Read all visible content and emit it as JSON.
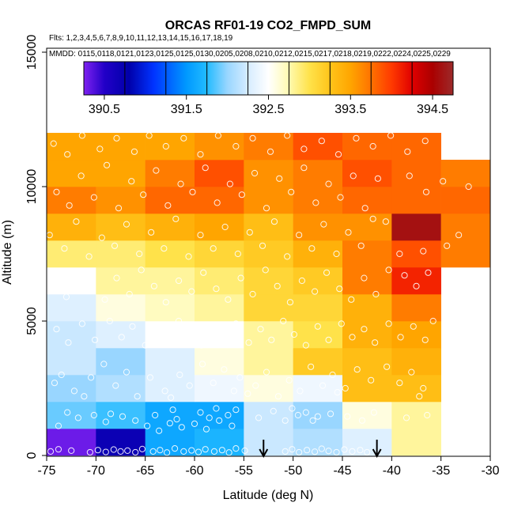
{
  "chart_data": {
    "type": "heatmap",
    "title": "ORCAS RF01-19 CO2_FMPD_SUM",
    "subtitle_flights": "Flts: 1,2,3,4,5,6,7,8,9,10,11,12,13,14,15,16,17,18,19",
    "legend_header": "MMDD: 0115,0118,0121,0123,0125,0125,0130,0205,0208,0210,0212,0215,0217,0218,0219,0222,0224,0225,0229",
    "xlabel": "Latitude (deg N)",
    "ylabel": "Altitude (m)",
    "xlim": [
      -75,
      -30
    ],
    "ylim": [
      0,
      15000
    ],
    "x_ticks": [
      -75,
      -70,
      -65,
      -60,
      -55,
      -50,
      -45,
      -40,
      -35,
      -30
    ],
    "x_tick_labels": [
      "-75",
      "-70",
      "-65",
      "-60",
      "-55",
      "-50",
      "-45",
      "-40",
      "-35",
      "-30"
    ],
    "y_ticks": [
      0,
      5000,
      10000,
      15000
    ],
    "y_tick_labels": [
      "0",
      "5000",
      "10000",
      "15000"
    ],
    "colorbar": {
      "range": [
        390.25,
        394.75
      ],
      "ticks": [
        390.5,
        391.5,
        392.5,
        393.5,
        394.5
      ],
      "tick_labels": [
        "390.5",
        "391.5",
        "392.5",
        "393.5",
        "394.5"
      ],
      "stops": [
        {
          "v": 390.25,
          "c": "#7f22f0"
        },
        {
          "v": 390.5,
          "c": "#2200c8"
        },
        {
          "v": 390.8,
          "c": "#0000aa"
        },
        {
          "v": 391.1,
          "c": "#0033ff"
        },
        {
          "v": 391.5,
          "c": "#0099ff"
        },
        {
          "v": 391.75,
          "c": "#22bbff"
        },
        {
          "v": 392.0,
          "c": "#99d6ff"
        },
        {
          "v": 392.25,
          "c": "#d6ecff"
        },
        {
          "v": 392.5,
          "c": "#ffffff"
        },
        {
          "v": 392.75,
          "c": "#fffab0"
        },
        {
          "v": 393.0,
          "c": "#ffe24a"
        },
        {
          "v": 393.25,
          "c": "#ffc41a"
        },
        {
          "v": 393.5,
          "c": "#ffa500"
        },
        {
          "v": 393.75,
          "c": "#ff7200"
        },
        {
          "v": 394.0,
          "c": "#ff3a00"
        },
        {
          "v": 394.25,
          "c": "#e00000"
        },
        {
          "v": 394.5,
          "c": "#aa0000"
        },
        {
          "v": 394.75,
          "c": "#9c2a2a"
        }
      ]
    },
    "grid": {
      "x_edges": [
        -75,
        -70,
        -65,
        -60,
        -55,
        -50,
        -45,
        -40,
        -35,
        -30
      ],
      "y_edges": [
        0,
        1000,
        2000,
        3000,
        4000,
        5000,
        6000,
        7000,
        8000,
        9000,
        10000,
        11000,
        12000
      ],
      "values": [
        [
          390.3,
          390.7,
          391.6,
          391.7,
          392.2,
          392.1,
          392.3,
          392.8,
          null
        ],
        [
          391.9,
          391.8,
          391.6,
          391.6,
          392.2,
          392.0,
          392.6,
          392.8,
          null
        ],
        [
          392.0,
          392.1,
          392.3,
          392.4,
          392.6,
          392.4,
          393.3,
          393.3,
          null
        ],
        [
          392.2,
          392.0,
          392.3,
          392.6,
          392.8,
          393.2,
          393.3,
          393.4,
          null
        ],
        [
          392.2,
          392.3,
          392.5,
          392.5,
          392.8,
          393.0,
          393.4,
          393.5,
          null
        ],
        [
          392.3,
          392.6,
          392.7,
          392.8,
          393.1,
          393.1,
          393.4,
          393.7,
          null
        ],
        [
          392.5,
          392.8,
          392.8,
          392.9,
          393.1,
          393.2,
          393.7,
          394.1,
          null
        ],
        [
          392.9,
          392.9,
          393.0,
          393.1,
          393.2,
          393.4,
          393.7,
          393.9,
          393.7
        ],
        [
          393.4,
          393.3,
          393.4,
          393.5,
          393.3,
          393.6,
          393.6,
          394.6,
          393.7
        ],
        [
          393.7,
          393.6,
          393.8,
          393.8,
          393.6,
          393.7,
          393.8,
          393.8,
          393.8
        ],
        [
          393.5,
          393.5,
          393.7,
          393.9,
          393.6,
          393.7,
          393.9,
          393.8,
          393.7
        ],
        [
          393.5,
          393.5,
          393.5,
          393.6,
          393.7,
          393.9,
          393.8,
          393.8,
          null
        ]
      ]
    },
    "arrows_latitude": [
      -53,
      -41.5
    ],
    "data_points": [
      [
        -74.6,
        150
      ],
      [
        -73.8,
        230
      ],
      [
        -72.5,
        180
      ],
      [
        -70.6,
        120
      ],
      [
        -69.8,
        200
      ],
      [
        -69.0,
        130
      ],
      [
        -68.2,
        220
      ],
      [
        -67.5,
        150
      ],
      [
        -66.8,
        180
      ],
      [
        -66.0,
        120
      ],
      [
        -65.3,
        240
      ],
      [
        -64.2,
        150
      ],
      [
        -63.5,
        200
      ],
      [
        -62.8,
        110
      ],
      [
        -62.0,
        260
      ],
      [
        -61.1,
        150
      ],
      [
        -60.3,
        190
      ],
      [
        -59.6,
        130
      ],
      [
        -58.9,
        230
      ],
      [
        -58.0,
        150
      ],
      [
        -57.2,
        200
      ],
      [
        -56.5,
        110
      ],
      [
        -55.8,
        260
      ],
      [
        -54.9,
        180
      ],
      [
        -50.8,
        150
      ],
      [
        -50.1,
        230
      ],
      [
        -49.4,
        120
      ],
      [
        -48.6,
        200
      ],
      [
        -47.8,
        140
      ],
      [
        -47.1,
        250
      ],
      [
        -46.4,
        170
      ],
      [
        -45.6,
        120
      ],
      [
        -44.8,
        220
      ],
      [
        -44.0,
        150
      ],
      [
        -43.2,
        200
      ],
      [
        -42.5,
        120
      ],
      [
        -64.8,
        1100
      ],
      [
        -63.6,
        920
      ],
      [
        -62.5,
        1200
      ],
      [
        -61.3,
        1050
      ],
      [
        -60.0,
        1180
      ],
      [
        -58.8,
        980
      ],
      [
        -57.5,
        1300
      ],
      [
        -56.2,
        1100
      ],
      [
        -66.0,
        1300
      ],
      [
        -67.3,
        1450
      ],
      [
        -69.0,
        1250
      ],
      [
        -70.2,
        1500
      ],
      [
        -71.8,
        1400
      ],
      [
        -72.9,
        1600
      ],
      [
        -73.8,
        1100
      ],
      [
        -68.5,
        1550
      ],
      [
        -64.0,
        1500
      ],
      [
        -62.2,
        1700
      ],
      [
        -59.4,
        1600
      ],
      [
        -57.8,
        1750
      ],
      [
        -55.8,
        1700
      ],
      [
        -56.6,
        1500
      ],
      [
        -58.5,
        1400
      ],
      [
        -61.8,
        1350
      ],
      [
        -50.8,
        1300
      ],
      [
        -49.5,
        1500
      ],
      [
        -48.7,
        1600
      ],
      [
        -47.5,
        1450
      ],
      [
        -46.2,
        1550
      ],
      [
        -50.1,
        1750
      ],
      [
        -48.0,
        1300
      ],
      [
        -52.0,
        1650
      ],
      [
        -53.5,
        1400
      ],
      [
        -44.5,
        1450
      ],
      [
        -43.0,
        1300
      ],
      [
        -41.8,
        1600
      ],
      [
        -38.5,
        1400
      ],
      [
        -36.4,
        1500
      ],
      [
        -74.2,
        2700
      ],
      [
        -73.5,
        3000
      ],
      [
        -72.2,
        2400
      ],
      [
        -70.5,
        2900
      ],
      [
        -69.2,
        3400
      ],
      [
        -68.0,
        2600
      ],
      [
        -66.9,
        3100
      ],
      [
        -65.8,
        2200
      ],
      [
        -64.5,
        2900
      ],
      [
        -63.0,
        2400
      ],
      [
        -61.5,
        3000
      ],
      [
        -60.5,
        2600
      ],
      [
        -59.2,
        3400
      ],
      [
        -58.1,
        2700
      ],
      [
        -57.0,
        3200
      ],
      [
        -56.0,
        2400
      ],
      [
        -55.4,
        2900
      ],
      [
        -53.8,
        2600
      ],
      [
        -52.7,
        3100
      ],
      [
        -51.5,
        2200
      ],
      [
        -50.4,
        2800
      ],
      [
        -49.3,
        2400
      ],
      [
        -48.2,
        3300
      ],
      [
        -47.0,
        2600
      ],
      [
        -46.0,
        3000
      ],
      [
        -44.7,
        2500
      ],
      [
        -43.5,
        3200
      ],
      [
        -42.1,
        2800
      ],
      [
        -40.5,
        3300
      ],
      [
        -39.2,
        2700
      ],
      [
        -38.0,
        3100
      ],
      [
        -36.8,
        2500
      ],
      [
        -71.2,
        2200
      ],
      [
        -62.4,
        2150
      ],
      [
        -54.6,
        2300
      ],
      [
        -45.5,
        2350
      ],
      [
        -37.2,
        2200
      ],
      [
        -74.0,
        4700
      ],
      [
        -72.8,
        4200
      ],
      [
        -71.4,
        4900
      ],
      [
        -70.1,
        4300
      ],
      [
        -68.6,
        5000
      ],
      [
        -67.4,
        4400
      ],
      [
        -66.3,
        4800
      ],
      [
        -65.0,
        4100
      ],
      [
        -63.8,
        4700
      ],
      [
        -62.7,
        4300
      ],
      [
        -61.6,
        5000
      ],
      [
        -60.4,
        4500
      ],
      [
        -59.3,
        4100
      ],
      [
        -58.1,
        4800
      ],
      [
        -56.9,
        4400
      ],
      [
        -55.8,
        4900
      ],
      [
        -54.5,
        4200
      ],
      [
        -53.3,
        4700
      ],
      [
        -52.2,
        4300
      ],
      [
        -51.0,
        5000
      ],
      [
        -49.9,
        4500
      ],
      [
        -48.7,
        4100
      ],
      [
        -47.5,
        4800
      ],
      [
        -46.4,
        4300
      ],
      [
        -45.1,
        4900
      ],
      [
        -44.0,
        4400
      ],
      [
        -42.8,
        4700
      ],
      [
        -41.7,
        4200
      ],
      [
        -40.3,
        4900
      ],
      [
        -39.1,
        4400
      ],
      [
        -37.8,
        4800
      ],
      [
        -36.6,
        4300
      ],
      [
        -35.8,
        5000
      ],
      [
        -74.4,
        6500
      ],
      [
        -73.0,
        5900
      ],
      [
        -71.7,
        6800
      ],
      [
        -70.4,
        6200
      ],
      [
        -69.1,
        5800
      ],
      [
        -67.9,
        6600
      ],
      [
        -66.6,
        6000
      ],
      [
        -65.4,
        6900
      ],
      [
        -64.1,
        6300
      ],
      [
        -62.9,
        5700
      ],
      [
        -61.6,
        6500
      ],
      [
        -60.3,
        6100
      ],
      [
        -59.1,
        6800
      ],
      [
        -57.8,
        6200
      ],
      [
        -56.6,
        5800
      ],
      [
        -55.3,
        6600
      ],
      [
        -54.1,
        6000
      ],
      [
        -52.8,
        6900
      ],
      [
        -51.6,
        6300
      ],
      [
        -50.3,
        5700
      ],
      [
        -49.1,
        6500
      ],
      [
        -47.8,
        6100
      ],
      [
        -46.6,
        6800
      ],
      [
        -45.3,
        6200
      ],
      [
        -44.1,
        5800
      ],
      [
        -42.8,
        6600
      ],
      [
        -41.6,
        6000
      ],
      [
        -40.3,
        6900
      ],
      [
        -38.7,
        6700
      ],
      [
        -37.5,
        6300
      ],
      [
        -36.3,
        6800
      ],
      [
        -74.7,
        8200
      ],
      [
        -73.2,
        7700
      ],
      [
        -72.0,
        8700
      ],
      [
        -70.7,
        7400
      ],
      [
        -69.4,
        8100
      ],
      [
        -68.1,
        7800
      ],
      [
        -66.9,
        8600
      ],
      [
        -65.6,
        7500
      ],
      [
        -64.4,
        8300
      ],
      [
        -63.1,
        7700
      ],
      [
        -61.9,
        8800
      ],
      [
        -60.6,
        7400
      ],
      [
        -59.4,
        8200
      ],
      [
        -58.1,
        7700
      ],
      [
        -56.9,
        8500
      ],
      [
        -55.6,
        7500
      ],
      [
        -54.4,
        8300
      ],
      [
        -53.1,
        7800
      ],
      [
        -51.9,
        8700
      ],
      [
        -50.6,
        7400
      ],
      [
        -49.4,
        8200
      ],
      [
        -48.1,
        7700
      ],
      [
        -46.9,
        8600
      ],
      [
        -45.6,
        7500
      ],
      [
        -44.4,
        8300
      ],
      [
        -43.1,
        7800
      ],
      [
        -41.9,
        8800
      ],
      [
        -40.6,
        8700
      ],
      [
        -39.2,
        7500
      ],
      [
        -36.8,
        7600
      ],
      [
        -34.4,
        7800
      ],
      [
        -33.2,
        8200
      ],
      [
        -74.0,
        9800
      ],
      [
        -72.7,
        9300
      ],
      [
        -71.5,
        10400
      ],
      [
        -70.2,
        9600
      ],
      [
        -68.9,
        10800
      ],
      [
        -67.7,
        9200
      ],
      [
        -66.4,
        10200
      ],
      [
        -65.2,
        9700
      ],
      [
        -63.9,
        10600
      ],
      [
        -62.7,
        9300
      ],
      [
        -61.4,
        10100
      ],
      [
        -60.2,
        9800
      ],
      [
        -58.9,
        10700
      ],
      [
        -57.7,
        9400
      ],
      [
        -56.4,
        10100
      ],
      [
        -55.2,
        9700
      ],
      [
        -53.9,
        10500
      ],
      [
        -52.7,
        9200
      ],
      [
        -51.4,
        10300
      ],
      [
        -50.2,
        9800
      ],
      [
        -48.9,
        10700
      ],
      [
        -47.7,
        9400
      ],
      [
        -46.4,
        10100
      ],
      [
        -45.2,
        9600
      ],
      [
        -43.9,
        10400
      ],
      [
        -42.7,
        9200
      ],
      [
        -41.4,
        10300
      ],
      [
        -38.2,
        10400
      ],
      [
        -36.5,
        9800
      ],
      [
        -34.8,
        10200
      ],
      [
        -32.2,
        10000
      ],
      [
        -74.3,
        11600
      ],
      [
        -72.9,
        11200
      ],
      [
        -71.4,
        11900
      ],
      [
        -69.6,
        11400
      ],
      [
        -67.9,
        11800
      ],
      [
        -66.1,
        11300
      ],
      [
        -64.6,
        11900
      ],
      [
        -62.9,
        11500
      ],
      [
        -61.1,
        11800
      ],
      [
        -59.4,
        11200
      ],
      [
        -57.6,
        11900
      ],
      [
        -55.8,
        11500
      ],
      [
        -54.1,
        11800
      ],
      [
        -52.3,
        11300
      ],
      [
        -50.6,
        11900
      ],
      [
        -48.9,
        11400
      ],
      [
        -47.1,
        11700
      ],
      [
        -45.4,
        11200
      ],
      [
        -43.6,
        11800
      ],
      [
        -41.9,
        11500
      ],
      [
        -40.1,
        11900
      ],
      [
        -38.4,
        11300
      ],
      [
        -36.6,
        11700
      ]
    ]
  }
}
